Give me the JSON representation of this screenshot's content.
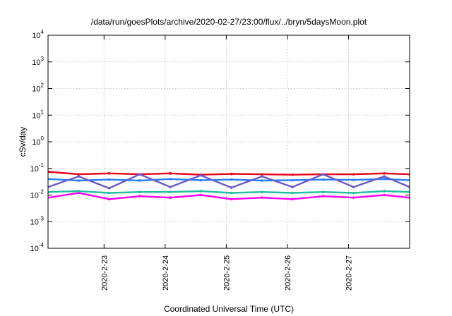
{
  "chart_data": {
    "type": "line",
    "title": "/data/run/goesPlots/archive/2020-02-27/23:00/flux/../bryn/5daysMoon.plot",
    "xlabel": "Coordinated Universal Time (UTC)",
    "ylabel": "cSv/day",
    "yscale": "log",
    "ylim": [
      0.0001,
      10000
    ],
    "xlim": [
      "2020-02-22T02:00",
      "2020-02-28T00:00"
    ],
    "grid": true,
    "legend": "none",
    "x_ticks": [
      "2020-2-23",
      "2020-2-24",
      "2020-2-25",
      "2020-2-26",
      "2020-2-27"
    ],
    "y_ticks": [
      {
        "value": 0.0001,
        "base": "10",
        "exp": "-4"
      },
      {
        "value": 0.001,
        "base": "10",
        "exp": "-3"
      },
      {
        "value": 0.01,
        "base": "10",
        "exp": "-2"
      },
      {
        "value": 0.1,
        "base": "10",
        "exp": "-1"
      },
      {
        "value": 1,
        "base": "10",
        "exp": "0"
      },
      {
        "value": 10,
        "base": "10",
        "exp": "1"
      },
      {
        "value": 100,
        "base": "10",
        "exp": "2"
      },
      {
        "value": 1000,
        "base": "10",
        "exp": "3"
      },
      {
        "value": 10000,
        "base": "10",
        "exp": "4"
      }
    ],
    "series": [
      {
        "color": "#ff00ff",
        "x": [
          "2020-02-22T02:00",
          "2020-02-22T14:00",
          "2020-02-23T02:00",
          "2020-02-23T14:00",
          "2020-02-24T02:00",
          "2020-02-24T14:00",
          "2020-02-25T02:00",
          "2020-02-25T14:00",
          "2020-02-26T02:00",
          "2020-02-26T14:00",
          "2020-02-27T02:00",
          "2020-02-27T14:00",
          "2020-02-28T00:00"
        ],
        "values": [
          0.008,
          0.012,
          0.007,
          0.009,
          0.008,
          0.01,
          0.007,
          0.008,
          0.007,
          0.009,
          0.008,
          0.01,
          0.008
        ]
      },
      {
        "color": "#e8001c",
        "x": [
          "2020-02-22T02:00",
          "2020-02-22T14:00",
          "2020-02-23T02:00",
          "2020-02-23T14:00",
          "2020-02-24T02:00",
          "2020-02-24T14:00",
          "2020-02-25T02:00",
          "2020-02-25T14:00",
          "2020-02-26T02:00",
          "2020-02-26T14:00",
          "2020-02-27T02:00",
          "2020-02-27T14:00",
          "2020-02-28T00:00"
        ],
        "values": [
          0.075,
          0.06,
          0.065,
          0.06,
          0.065,
          0.058,
          0.062,
          0.06,
          0.058,
          0.06,
          0.06,
          0.065,
          0.06
        ]
      },
      {
        "color": "#2a7fff",
        "x": [
          "2020-02-22T02:00",
          "2020-02-22T14:00",
          "2020-02-23T02:00",
          "2020-02-23T14:00",
          "2020-02-24T02:00",
          "2020-02-24T14:00",
          "2020-02-25T02:00",
          "2020-02-25T14:00",
          "2020-02-26T02:00",
          "2020-02-26T14:00",
          "2020-02-27T02:00",
          "2020-02-27T14:00",
          "2020-02-28T00:00"
        ],
        "values": [
          0.04,
          0.035,
          0.038,
          0.035,
          0.04,
          0.036,
          0.038,
          0.035,
          0.036,
          0.038,
          0.037,
          0.04,
          0.036
        ]
      },
      {
        "color": "#20c0a0",
        "x": [
          "2020-02-22T02:00",
          "2020-02-22T14:00",
          "2020-02-23T02:00",
          "2020-02-23T14:00",
          "2020-02-24T02:00",
          "2020-02-24T14:00",
          "2020-02-25T02:00",
          "2020-02-25T14:00",
          "2020-02-26T02:00",
          "2020-02-26T14:00",
          "2020-02-27T02:00",
          "2020-02-27T14:00",
          "2020-02-28T00:00"
        ],
        "values": [
          0.013,
          0.014,
          0.012,
          0.013,
          0.013,
          0.014,
          0.012,
          0.013,
          0.012,
          0.013,
          0.012,
          0.014,
          0.013
        ]
      },
      {
        "color": "#6a5acd",
        "x": [
          "2020-02-22T02:00",
          "2020-02-22T14:00",
          "2020-02-23T02:00",
          "2020-02-23T14:00",
          "2020-02-24T02:00",
          "2020-02-24T14:00",
          "2020-02-25T02:00",
          "2020-02-25T14:00",
          "2020-02-26T02:00",
          "2020-02-26T14:00",
          "2020-02-27T02:00",
          "2020-02-27T14:00",
          "2020-02-28T00:00"
        ],
        "values": [
          0.02,
          0.05,
          0.018,
          0.06,
          0.02,
          0.055,
          0.019,
          0.05,
          0.02,
          0.06,
          0.02,
          0.05,
          0.02
        ]
      }
    ]
  }
}
